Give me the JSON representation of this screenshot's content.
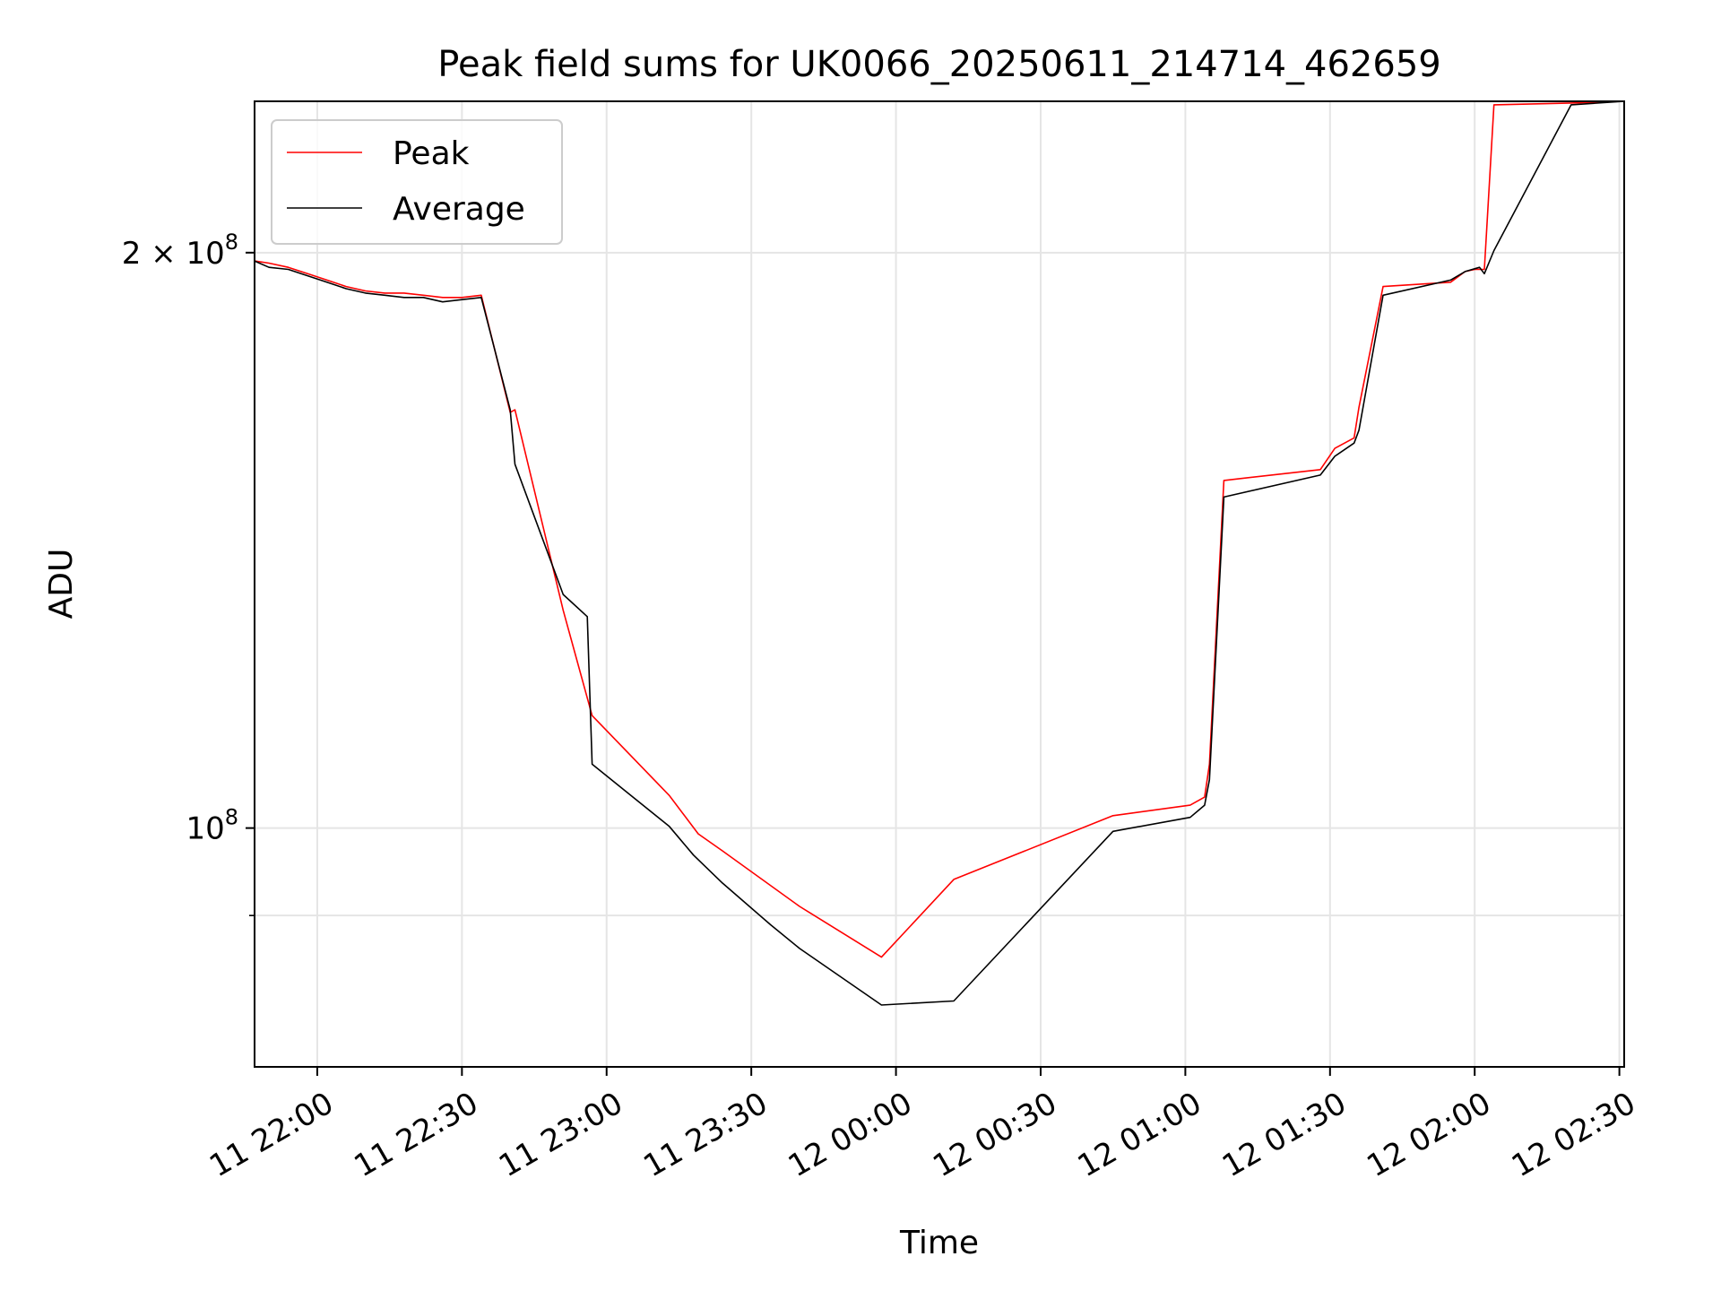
{
  "chart_data": {
    "type": "line",
    "title": "Peak field sums for UK0066_20250611_214714_462659",
    "xlabel": "Time",
    "ylabel": "ADU",
    "yscale": "log",
    "ylim": [
      75000000,
      240000000
    ],
    "xlim": [
      "2025-06-11 21:47:00",
      "2025-06-12 02:31:00"
    ],
    "grid": true,
    "legend_location": "upper-left",
    "x_ticks": [
      {
        "t": "2025-06-11 22:00",
        "label": "11 22:00"
      },
      {
        "t": "2025-06-11 22:30",
        "label": "11 22:30"
      },
      {
        "t": "2025-06-11 23:00",
        "label": "11 23:00"
      },
      {
        "t": "2025-06-11 23:30",
        "label": "11 23:30"
      },
      {
        "t": "2025-06-12 00:00",
        "label": "12 00:00"
      },
      {
        "t": "2025-06-12 00:30",
        "label": "12 00:30"
      },
      {
        "t": "2025-06-12 01:00",
        "label": "12 01:00"
      },
      {
        "t": "2025-06-12 01:30",
        "label": "12 01:30"
      },
      {
        "t": "2025-06-12 02:00",
        "label": "12 02:00"
      },
      {
        "t": "2025-06-12 02:30",
        "label": "12 02:30"
      }
    ],
    "y_ticks_major": [
      {
        "v": 100000000,
        "base": "10",
        "exp": "8",
        "prefix": ""
      },
      {
        "v": 200000000,
        "base": "10",
        "exp": "8",
        "prefix": "2 × "
      }
    ],
    "y_ticks_minor": [
      90000000
    ],
    "series": [
      {
        "name": "Peak",
        "color": "#ff0000",
        "points": [
          [
            "2025-06-11 21:47:00",
            198000000
          ],
          [
            "2025-06-11 21:50:00",
            197500000
          ],
          [
            "2025-06-11 21:54:00",
            196500000
          ],
          [
            "2025-06-11 21:58:00",
            195000000
          ],
          [
            "2025-06-11 22:02:00",
            193500000
          ],
          [
            "2025-06-11 22:06:00",
            192000000
          ],
          [
            "2025-06-11 22:10:00",
            191000000
          ],
          [
            "2025-06-11 22:14:00",
            190500000
          ],
          [
            "2025-06-11 22:18:00",
            190500000
          ],
          [
            "2025-06-11 22:22:00",
            190000000
          ],
          [
            "2025-06-11 22:26:00",
            189500000
          ],
          [
            "2025-06-11 22:30:00",
            189500000
          ],
          [
            "2025-06-11 22:34:00",
            190000000
          ],
          [
            "2025-06-11 22:40:00",
            165000000
          ],
          [
            "2025-06-11 22:41:00",
            165500000
          ],
          [
            "2025-06-11 22:51:00",
            130000000
          ],
          [
            "2025-06-11 22:57:00",
            114500000
          ],
          [
            "2025-06-11 23:13:00",
            104000000
          ],
          [
            "2025-06-11 23:19:00",
            99300000
          ],
          [
            "2025-06-11 23:24:00",
            97300000
          ],
          [
            "2025-06-11 23:40:00",
            91000000
          ],
          [
            "2025-06-11 23:57:00",
            85600000
          ],
          [
            "2025-06-12 00:12:00",
            94000000
          ],
          [
            "2025-06-12 00:45:00",
            101500000
          ],
          [
            "2025-06-12 01:01:00",
            102800000
          ],
          [
            "2025-06-12 01:04:00",
            103800000
          ],
          [
            "2025-06-12 01:05:00",
            108000000
          ],
          [
            "2025-06-12 01:08:00",
            152000000
          ],
          [
            "2025-06-12 01:28:00",
            154000000
          ],
          [
            "2025-06-12 01:31:00",
            158000000
          ],
          [
            "2025-06-12 01:35:00",
            160000000
          ],
          [
            "2025-06-12 01:36:00",
            166000000
          ],
          [
            "2025-06-12 01:41:00",
            192000000
          ],
          [
            "2025-06-12 01:55:00",
            193000000
          ],
          [
            "2025-06-12 01:58:00",
            195500000
          ],
          [
            "2025-06-12 02:00:00",
            196000000
          ],
          [
            "2025-06-12 02:02:00",
            196000000
          ],
          [
            "2025-06-12 02:04:00",
            239000000
          ],
          [
            "2025-06-12 02:20:00",
            239500000
          ],
          [
            "2025-06-12 02:31:00",
            240000000
          ]
        ]
      },
      {
        "name": "Average",
        "color": "#000000",
        "points": [
          [
            "2025-06-11 21:47:00",
            198000000
          ],
          [
            "2025-06-11 21:50:00",
            196500000
          ],
          [
            "2025-06-11 21:54:00",
            196000000
          ],
          [
            "2025-06-11 21:58:00",
            194500000
          ],
          [
            "2025-06-11 22:02:00",
            193000000
          ],
          [
            "2025-06-11 22:06:00",
            191500000
          ],
          [
            "2025-06-11 22:10:00",
            190500000
          ],
          [
            "2025-06-11 22:14:00",
            190000000
          ],
          [
            "2025-06-11 22:18:00",
            189500000
          ],
          [
            "2025-06-11 22:22:00",
            189500000
          ],
          [
            "2025-06-11 22:26:00",
            188500000
          ],
          [
            "2025-06-11 22:30:00",
            189000000
          ],
          [
            "2025-06-11 22:34:00",
            189500000
          ],
          [
            "2025-06-11 22:40:00",
            165500000
          ],
          [
            "2025-06-11 22:41:00",
            155000000
          ],
          [
            "2025-06-11 22:51:00",
            132500000
          ],
          [
            "2025-06-11 22:56:00",
            129000000
          ],
          [
            "2025-06-11 22:57:00",
            108000000
          ],
          [
            "2025-06-11 23:13:00",
            100200000
          ],
          [
            "2025-06-11 23:18:00",
            96800000
          ],
          [
            "2025-06-11 23:24:00",
            93600000
          ],
          [
            "2025-06-11 23:34:00",
            89000000
          ],
          [
            "2025-06-11 23:40:00",
            86500000
          ],
          [
            "2025-06-11 23:57:00",
            80800000
          ],
          [
            "2025-06-12 00:12:00",
            81200000
          ],
          [
            "2025-06-12 00:45:00",
            99600000
          ],
          [
            "2025-06-12 01:01:00",
            101300000
          ],
          [
            "2025-06-12 01:04:00",
            102800000
          ],
          [
            "2025-06-12 01:05:00",
            106000000
          ],
          [
            "2025-06-12 01:08:00",
            149000000
          ],
          [
            "2025-06-12 01:28:00",
            153000000
          ],
          [
            "2025-06-12 01:31:00",
            156500000
          ],
          [
            "2025-06-12 01:35:00",
            159000000
          ],
          [
            "2025-06-12 01:36:00",
            161500000
          ],
          [
            "2025-06-12 01:41:00",
            190000000
          ],
          [
            "2025-06-12 01:55:00",
            193500000
          ],
          [
            "2025-06-12 01:58:00",
            195500000
          ],
          [
            "2025-06-12 02:01:00",
            196500000
          ],
          [
            "2025-06-12 02:02:00",
            195000000
          ],
          [
            "2025-06-12 02:04:00",
            200500000
          ],
          [
            "2025-06-12 02:20:00",
            239000000
          ],
          [
            "2025-06-12 02:31:00",
            240000000
          ]
        ]
      }
    ]
  }
}
